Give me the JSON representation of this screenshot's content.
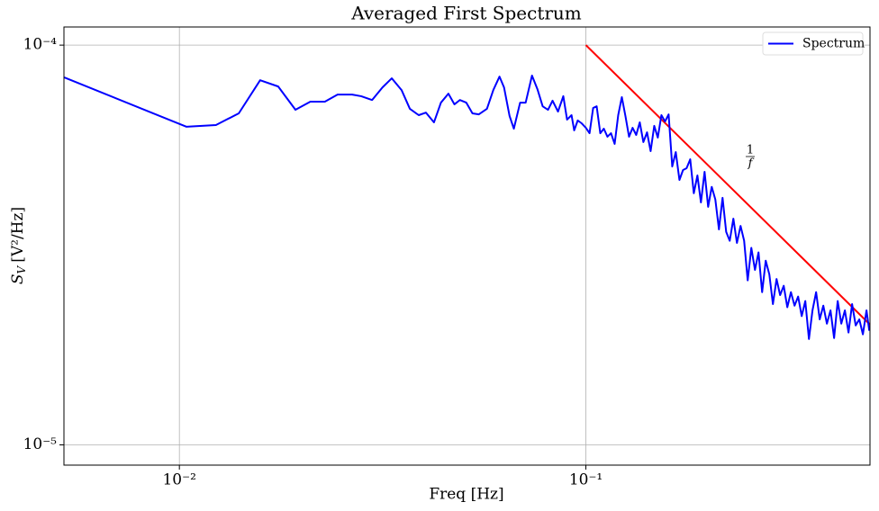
{
  "chart_data": {
    "type": "line",
    "title": "Averaged First Spectrum",
    "xlabel": "Freq [Hz]",
    "ylabel": {
      "symbol": "S",
      "subscript": "V",
      "unit": "[V²/Hz]"
    },
    "log_x": true,
    "log_y": true,
    "grid": true,
    "legend": "upper right",
    "xlim": [
      0.0052,
      0.5
    ],
    "ylim": [
      8.9e-06,
      0.000111
    ],
    "xticks": [
      {
        "value": 0.01,
        "label": "10⁻²"
      },
      {
        "value": 0.1,
        "label": "10⁻¹"
      }
    ],
    "yticks": [
      {
        "value": 1e-05,
        "label": "10⁻⁵"
      },
      {
        "value": 0.0001,
        "label": "10⁻⁴"
      }
    ],
    "series": [
      {
        "name": "Spectrum",
        "color": "#0000ff",
        "x": [
          0.00521,
          0.0104,
          0.0123,
          0.014,
          0.0158,
          0.0175,
          0.0193,
          0.021,
          0.0228,
          0.0245,
          0.0266,
          0.028,
          0.0298,
          0.0316,
          0.0333,
          0.0352,
          0.0369,
          0.0388,
          0.0404,
          0.0423,
          0.044,
          0.0459,
          0.0475,
          0.049,
          0.0508,
          0.0526,
          0.0545,
          0.0571,
          0.0592,
          0.0613,
          0.0629,
          0.0649,
          0.0665,
          0.0689,
          0.0711,
          0.0737,
          0.076,
          0.0783,
          0.0807,
          0.0828,
          0.0854,
          0.088,
          0.0899,
          0.0922,
          0.0936,
          0.0955,
          0.0975,
          0.1,
          0.1021,
          0.1042,
          0.1063,
          0.1085,
          0.1107,
          0.113,
          0.1153,
          0.1177,
          0.1201,
          0.1226,
          0.1251,
          0.1277,
          0.1303,
          0.133,
          0.1357,
          0.1385,
          0.1414,
          0.1443,
          0.1473,
          0.1503,
          0.1534,
          0.1566,
          0.1598,
          0.1631,
          0.1664,
          0.1699,
          0.1734,
          0.1769,
          0.1806,
          0.1843,
          0.1881,
          0.1919,
          0.1959,
          0.1999,
          0.204,
          0.2082,
          0.2125,
          0.2169,
          0.2214,
          0.2259,
          0.2306,
          0.2353,
          0.2402,
          0.2451,
          0.2501,
          0.2553,
          0.2606,
          0.2659,
          0.2714,
          0.277,
          0.2827,
          0.2885,
          0.2945,
          0.3005,
          0.3067,
          0.313,
          0.3195,
          0.3261,
          0.3328,
          0.3396,
          0.3466,
          0.3538,
          0.361,
          0.3685,
          0.3761,
          0.3838,
          0.3917,
          0.3998,
          0.408,
          0.4164,
          0.425,
          0.4337,
          0.4427,
          0.4518,
          0.4611,
          0.4706,
          0.4803,
          0.4902,
          0.498
        ],
        "values": [
          8.3e-05,
          6.25e-05,
          6.31e-05,
          6.75e-05,
          8.17e-05,
          7.88e-05,
          6.89e-05,
          7.22e-05,
          7.22e-05,
          7.52e-05,
          7.52e-05,
          7.45e-05,
          7.29e-05,
          7.84e-05,
          8.26e-05,
          7.72e-05,
          6.93e-05,
          6.68e-05,
          6.78e-05,
          6.41e-05,
          7.18e-05,
          7.56e-05,
          7.11e-05,
          7.29e-05,
          7.18e-05,
          6.75e-05,
          6.71e-05,
          6.93e-05,
          7.72e-05,
          8.34e-05,
          7.84e-05,
          6.65e-05,
          6.18e-05,
          7.18e-05,
          7.18e-05,
          8.39e-05,
          7.76e-05,
          7.03e-05,
          6.89e-05,
          7.26e-05,
          6.82e-05,
          7.45e-05,
          6.51e-05,
          6.68e-05,
          6.12e-05,
          6.48e-05,
          6.38e-05,
          6.21e-05,
          6.02e-05,
          6.96e-05,
          7.03e-05,
          6.02e-05,
          6.18e-05,
          5.9e-05,
          6.02e-05,
          5.66e-05,
          6.68e-05,
          7.41e-05,
          6.65e-05,
          5.9e-05,
          6.21e-05,
          5.96e-05,
          6.41e-05,
          5.72e-05,
          6.05e-05,
          5.43e-05,
          6.28e-05,
          5.87e-05,
          6.68e-05,
          6.44e-05,
          6.71e-05,
          4.97e-05,
          5.4e-05,
          4.6e-05,
          4.87e-05,
          4.92e-05,
          5.18e-05,
          4.26e-05,
          4.72e-05,
          4.04e-05,
          4.82e-05,
          3.94e-05,
          4.42e-05,
          4.11e-05,
          3.46e-05,
          4.15e-05,
          3.41e-05,
          3.24e-05,
          3.68e-05,
          3.2e-05,
          3.53e-05,
          3.24e-05,
          2.58e-05,
          3.11e-05,
          2.74e-05,
          3.03e-05,
          2.41e-05,
          2.89e-05,
          2.67e-05,
          2.25e-05,
          2.6e-05,
          2.37e-05,
          2.5e-05,
          2.21e-05,
          2.41e-05,
          2.23e-05,
          2.35e-05,
          2.1e-05,
          2.29e-05,
          1.84e-05,
          2.17e-05,
          2.41e-05,
          2.06e-05,
          2.23e-05,
          2.01e-05,
          2.17e-05,
          1.85e-05,
          2.29e-05,
          2.01e-05,
          2.17e-05,
          1.91e-05,
          2.25e-05,
          1.99e-05,
          2.06e-05,
          1.89e-05,
          2.17e-05,
          1.93e-05
        ]
      }
    ],
    "reference_line": {
      "color": "#ff0000",
      "x": [
        0.1,
        0.5
      ],
      "values": [
        0.0001,
        2e-05
      ]
    },
    "annotation": {
      "numerator": "1",
      "denominator": "f"
    }
  }
}
